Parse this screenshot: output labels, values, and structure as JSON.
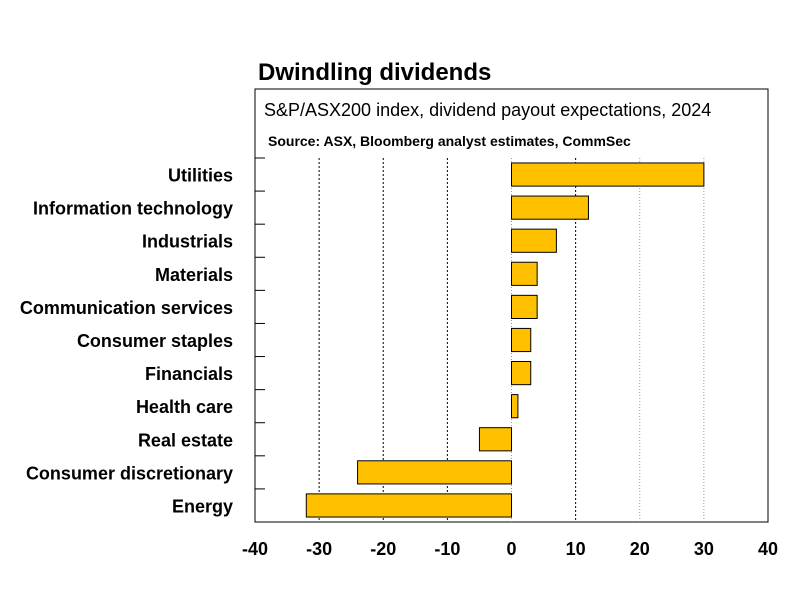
{
  "chart_data": {
    "type": "bar",
    "orientation": "horizontal",
    "title": "Dwindling dividends",
    "subtitle": "S&P/ASX200 index, dividend payout expectations, 2024",
    "source": "Source: ASX, Bloomberg analyst estimates, CommSec",
    "categories": [
      "Utilities",
      "Information technology",
      "Industrials",
      "Materials",
      "Communication services",
      "Consumer staples",
      "Financials",
      "Health care",
      "Real estate",
      "Consumer discretionary",
      "Energy"
    ],
    "values": [
      30,
      12,
      7,
      4,
      4,
      3,
      3,
      1,
      -5,
      -24,
      -32
    ],
    "xlim": [
      -40,
      40
    ],
    "xticks": [
      "-40",
      "-30",
      "-20",
      "-10",
      "0",
      "10",
      "20",
      "30",
      "40"
    ],
    "grid": "vertical",
    "bar_color": "#FFC000"
  }
}
